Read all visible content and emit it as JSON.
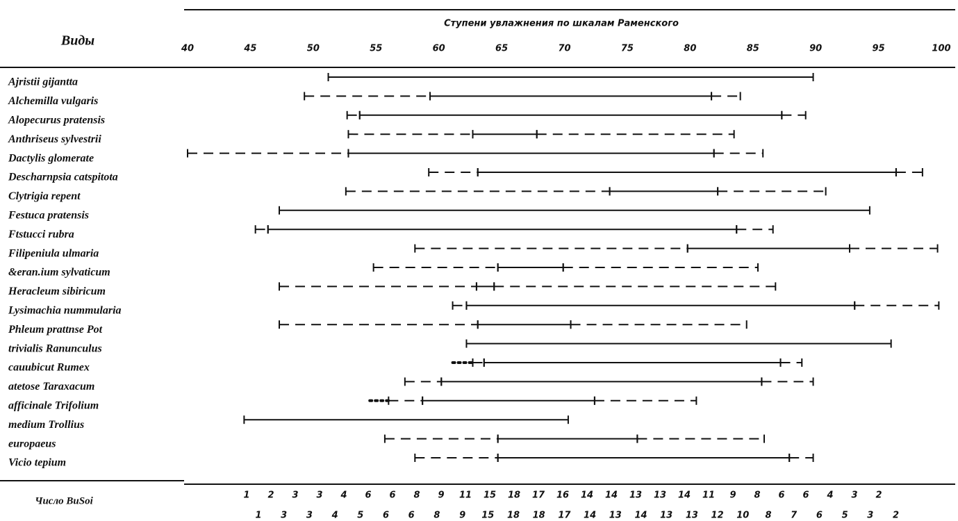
{
  "chart_data": {
    "type": "range",
    "title": "Ступени увлажнения по шкалам Раменского",
    "row_header": "Виды",
    "footer_label": "Число BuSoi",
    "xlim": [
      40,
      100
    ],
    "xticks": [
      40,
      45,
      50,
      55,
      60,
      65,
      70,
      75,
      80,
      85,
      90,
      95,
      100
    ],
    "rows": [
      {
        "name": "Ajristii gijantta",
        "segments": [
          {
            "from": 51.2,
            "to": 89.8,
            "style": "solid"
          }
        ]
      },
      {
        "name": "Alchemilla vulgaris",
        "segments": [
          {
            "from": 49.3,
            "to": 59.3,
            "style": "dashed"
          },
          {
            "from": 59.3,
            "to": 81.7,
            "style": "solid"
          },
          {
            "from": 81.7,
            "to": 84.0,
            "style": "dashed"
          }
        ]
      },
      {
        "name": "Alopecurus pratensis",
        "segments": [
          {
            "from": 52.7,
            "to": 53.7,
            "style": "dashed"
          },
          {
            "from": 53.7,
            "to": 87.3,
            "style": "solid"
          },
          {
            "from": 87.3,
            "to": 89.2,
            "style": "dashed"
          }
        ]
      },
      {
        "name": "Anthriseus sylvestrii",
        "segments": [
          {
            "from": 52.8,
            "to": 62.7,
            "style": "dashed"
          },
          {
            "from": 62.7,
            "to": 67.8,
            "style": "solid"
          },
          {
            "from": 67.8,
            "to": 83.5,
            "style": "dashed"
          }
        ]
      },
      {
        "name": "Dactylis glomerate",
        "segments": [
          {
            "from": 40,
            "to": 52.8,
            "style": "dashed"
          },
          {
            "from": 52.8,
            "to": 81.9,
            "style": "solid"
          },
          {
            "from": 81.9,
            "to": 85.8,
            "style": "dashed"
          }
        ]
      },
      {
        "name": "Descharnpsia catspitota",
        "segments": [
          {
            "from": 59.2,
            "to": 63.1,
            "style": "dashed"
          },
          {
            "from": 63.1,
            "to": 96.4,
            "style": "solid"
          },
          {
            "from": 96.4,
            "to": 98.5,
            "style": "dashed"
          }
        ]
      },
      {
        "name": "Clytrigia repent",
        "segments": [
          {
            "from": 52.6,
            "to": 73.6,
            "style": "dashed"
          },
          {
            "from": 73.6,
            "to": 82.2,
            "style": "solid"
          },
          {
            "from": 82.2,
            "to": 90.8,
            "style": "dashed"
          }
        ]
      },
      {
        "name": "Festuca pratensis",
        "segments": [
          {
            "from": 47.3,
            "to": 94.3,
            "style": "solid"
          }
        ]
      },
      {
        "name": "Ftstucci rubra",
        "segments": [
          {
            "from": 45.4,
            "to": 46.4,
            "style": "dashed"
          },
          {
            "from": 46.4,
            "to": 83.7,
            "style": "solid"
          },
          {
            "from": 83.7,
            "to": 86.6,
            "style": "dashed"
          }
        ]
      },
      {
        "name": "Filipeniula ulmaria",
        "segments": [
          {
            "from": 58.1,
            "to": 79.8,
            "style": "dashed"
          },
          {
            "from": 79.8,
            "to": 92.7,
            "style": "solid"
          },
          {
            "from": 92.7,
            "to": 99.7,
            "style": "dashed"
          }
        ]
      },
      {
        "name": "&eran.ium sylvaticum",
        "segments": [
          {
            "from": 54.8,
            "to": 64.7,
            "style": "dashed"
          },
          {
            "from": 64.7,
            "to": 69.9,
            "style": "solid"
          },
          {
            "from": 69.9,
            "to": 85.4,
            "style": "dashed"
          }
        ]
      },
      {
        "name": "Heracleum sibiricum",
        "segments": [
          {
            "from": 47.3,
            "to": 63.0,
            "style": "dashed"
          },
          {
            "from": 63.0,
            "to": 64.4,
            "style": "solid"
          },
          {
            "from": 64.4,
            "to": 86.8,
            "style": "dashed"
          }
        ]
      },
      {
        "name": "Lysimachia nummularia",
        "segments": [
          {
            "from": 61.1,
            "to": 62.2,
            "style": "dashed"
          },
          {
            "from": 62.2,
            "to": 93.1,
            "style": "solid"
          },
          {
            "from": 93.1,
            "to": 99.8,
            "style": "dashed"
          }
        ]
      },
      {
        "name": "Phleum prattnse Pot",
        "segments": [
          {
            "from": 47.3,
            "to": 63.1,
            "style": "dashed"
          },
          {
            "from": 63.1,
            "to": 70.5,
            "style": "solid"
          },
          {
            "from": 70.5,
            "to": 84.5,
            "style": "dashed"
          }
        ]
      },
      {
        "name": "trivialis Ranunculus",
        "segments": [
          {
            "from": 62.2,
            "to": 96.0,
            "style": "solid"
          }
        ]
      },
      {
        "name": "cauubicut Rumex",
        "segments": [
          {
            "from": 61.1,
            "to": 62.7,
            "style": "dotted"
          },
          {
            "from": 62.7,
            "to": 63.6,
            "style": "dashed"
          },
          {
            "from": 63.6,
            "to": 87.2,
            "style": "solid"
          },
          {
            "from": 87.2,
            "to": 88.9,
            "style": "dashed"
          }
        ]
      },
      {
        "name": "atetose Taraxacum",
        "segments": [
          {
            "from": 57.3,
            "to": 60.2,
            "style": "dashed"
          },
          {
            "from": 60.2,
            "to": 85.7,
            "style": "solid"
          },
          {
            "from": 85.7,
            "to": 89.8,
            "style": "dashed"
          }
        ]
      },
      {
        "name": "afficinale Trifolium",
        "segments": [
          {
            "from": 54.5,
            "to": 56.0,
            "style": "dotted"
          },
          {
            "from": 56.0,
            "to": 58.7,
            "style": "dashed"
          },
          {
            "from": 58.7,
            "to": 72.4,
            "style": "solid"
          },
          {
            "from": 72.4,
            "to": 80.5,
            "style": "dashed"
          }
        ]
      },
      {
        "name": "medium Trollius",
        "segments": [
          {
            "from": 44.5,
            "to": 70.3,
            "style": "solid"
          }
        ]
      },
      {
        "name": "europaeus",
        "segments": [
          {
            "from": 55.7,
            "to": 64.7,
            "style": "dashed"
          },
          {
            "from": 64.7,
            "to": 75.8,
            "style": "solid"
          },
          {
            "from": 75.8,
            "to": 85.9,
            "style": "dashed"
          }
        ]
      },
      {
        "name": "Vicio tepium",
        "segments": [
          {
            "from": 58.1,
            "to": 64.7,
            "style": "dashed"
          },
          {
            "from": 64.7,
            "to": 87.9,
            "style": "solid"
          },
          {
            "from": 87.9,
            "to": 89.8,
            "style": "dashed"
          }
        ]
      }
    ],
    "counts": [
      [
        1,
        2,
        3,
        3,
        4,
        6,
        6,
        8,
        9,
        11,
        15,
        18,
        17,
        16,
        14,
        14,
        13,
        13,
        14,
        11,
        9,
        8,
        6,
        6,
        4,
        3,
        2
      ],
      [
        1,
        3,
        3,
        4,
        5,
        6,
        6,
        8,
        9,
        15,
        18,
        18,
        17,
        14,
        13,
        14,
        13,
        13,
        12,
        10,
        8,
        7,
        6,
        5,
        3,
        2
      ]
    ]
  }
}
